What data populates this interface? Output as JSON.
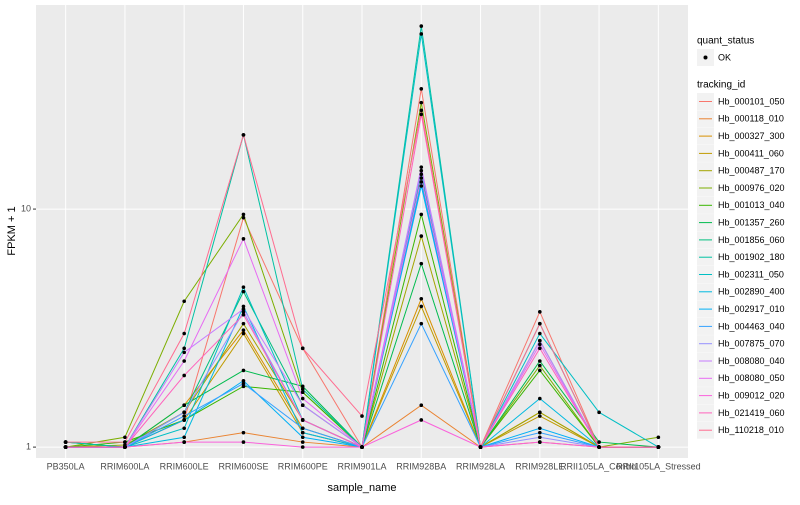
{
  "chart_data": {
    "type": "line",
    "x_label": "sample_name",
    "y_label": "FPKM + 1",
    "log_y": true,
    "ylim": [
      0.9,
      72
    ],
    "yticks": [
      1,
      10
    ],
    "grid": true,
    "categories": [
      "PB350LA",
      "RRIM600LA",
      "RRIM600LE",
      "RRIM600SE",
      "RRIM600PE",
      "RRIM901LA",
      "RRIM928BA",
      "RRIM928LA",
      "RRIM928LE",
      "RRII105LA_Control",
      "RRII105LA_Stressed"
    ],
    "shape_legend": {
      "title": "quant_status",
      "labels": [
        "OK"
      ]
    },
    "legend_title": "tracking_id",
    "series": [
      {
        "name": "Hb_000101_050",
        "color": "#F8766D",
        "values": [
          1.0,
          1.0,
          1.3,
          9.2,
          2.6,
          1.0,
          32,
          1.0,
          3.7,
          1.0,
          1.0
        ]
      },
      {
        "name": "Hb_000118_010",
        "color": "#EA8331",
        "values": [
          1.05,
          1.0,
          1.05,
          1.15,
          1.05,
          1.0,
          1.5,
          1.0,
          1.05,
          1.0,
          1.0
        ]
      },
      {
        "name": "Hb_000327_300",
        "color": "#D89000",
        "values": [
          1.0,
          1.0,
          1.5,
          3.1,
          1.2,
          1.0,
          4.2,
          1.0,
          1.4,
          1.0,
          1.0
        ]
      },
      {
        "name": "Hb_000411_060",
        "color": "#C09B00",
        "values": [
          1.0,
          1.0,
          1.3,
          3.0,
          1.15,
          1.0,
          3.9,
          1.0,
          1.35,
          1.0,
          1.0
        ]
      },
      {
        "name": "Hb_000487_170",
        "color": "#A3A500",
        "values": [
          1.0,
          1.02,
          1.4,
          3.3,
          1.3,
          1.0,
          7.7,
          1.0,
          1.4,
          1.0,
          1.0
        ]
      },
      {
        "name": "Hb_000976_020",
        "color": "#7CAE00",
        "values": [
          1.0,
          1.1,
          4.1,
          9.5,
          1.7,
          1.0,
          28,
          1.0,
          2.2,
          1.0,
          1.1
        ]
      },
      {
        "name": "Hb_001013_040",
        "color": "#39B600",
        "values": [
          1.0,
          1.05,
          1.3,
          1.8,
          1.7,
          1.0,
          9.5,
          1.0,
          2.1,
          1.0,
          1.0
        ]
      },
      {
        "name": "Hb_001357_260",
        "color": "#00BB4E",
        "values": [
          1.0,
          1.0,
          1.5,
          2.1,
          1.8,
          1.0,
          5.9,
          1.0,
          2.3,
          1.05,
          1.0
        ]
      },
      {
        "name": "Hb_001856_060",
        "color": "#00BF7D",
        "values": [
          1.05,
          1.0,
          1.4,
          4.5,
          1.5,
          1.0,
          14,
          1.0,
          2.8,
          1.0,
          1.0
        ]
      },
      {
        "name": "Hb_001902_180",
        "color": "#00C1A3",
        "values": [
          1.05,
          1.0,
          2.6,
          20.5,
          1.75,
          1.0,
          58.7,
          1.0,
          3.3,
          1.0,
          1.0
        ]
      },
      {
        "name": "Hb_002311_050",
        "color": "#00BFC4",
        "values": [
          1.0,
          1.0,
          1.2,
          4.7,
          1.3,
          1.0,
          54.4,
          1.0,
          3.0,
          1.4,
          1.0
        ]
      },
      {
        "name": "Hb_002890_400",
        "color": "#00BAE0",
        "values": [
          1.0,
          1.0,
          1.1,
          3.9,
          1.15,
          1.0,
          13,
          1.0,
          1.6,
          1.0,
          1.0
        ]
      },
      {
        "name": "Hb_002917_010",
        "color": "#00B0F6",
        "values": [
          1.0,
          1.0,
          1.3,
          1.9,
          1.1,
          1.0,
          12.5,
          1.0,
          1.2,
          1.0,
          1.0
        ]
      },
      {
        "name": "Hb_004463_040",
        "color": "#35A2FF",
        "values": [
          1.0,
          1.0,
          1.35,
          1.85,
          1.2,
          1.0,
          3.3,
          1.0,
          1.15,
          1.0,
          1.0
        ]
      },
      {
        "name": "Hb_007875_070",
        "color": "#9590FF",
        "values": [
          1.0,
          1.0,
          1.4,
          3.7,
          1.3,
          1.0,
          14.5,
          1.0,
          1.1,
          1.0,
          1.0
        ]
      },
      {
        "name": "Hb_008080_040",
        "color": "#C77CFF",
        "values": [
          1.0,
          1.0,
          2.5,
          3.8,
          1.5,
          1.0,
          15,
          1.0,
          2.8,
          1.0,
          1.0
        ]
      },
      {
        "name": "Hb_008080_050",
        "color": "#E76BF3",
        "values": [
          1.0,
          1.0,
          2.3,
          7.5,
          1.6,
          1.0,
          13.5,
          1.0,
          2.7,
          1.0,
          1.0
        ]
      },
      {
        "name": "Hb_009012_020",
        "color": "#FA62DB",
        "values": [
          1.0,
          1.0,
          1.05,
          1.05,
          1.0,
          1.0,
          1.3,
          1.0,
          1.05,
          1.0,
          1.0
        ]
      },
      {
        "name": "Hb_021419_060",
        "color": "#FF62BC",
        "values": [
          1.0,
          1.0,
          2.0,
          3.6,
          1.3,
          1.0,
          25,
          1.0,
          2.6,
          1.0,
          1.0
        ]
      },
      {
        "name": "Hb_110218_010",
        "color": "#FF6C90",
        "values": [
          1.05,
          1.05,
          3.0,
          20.5,
          2.6,
          1.35,
          26,
          1.0,
          3.3,
          1.0,
          1.0
        ]
      }
    ]
  }
}
